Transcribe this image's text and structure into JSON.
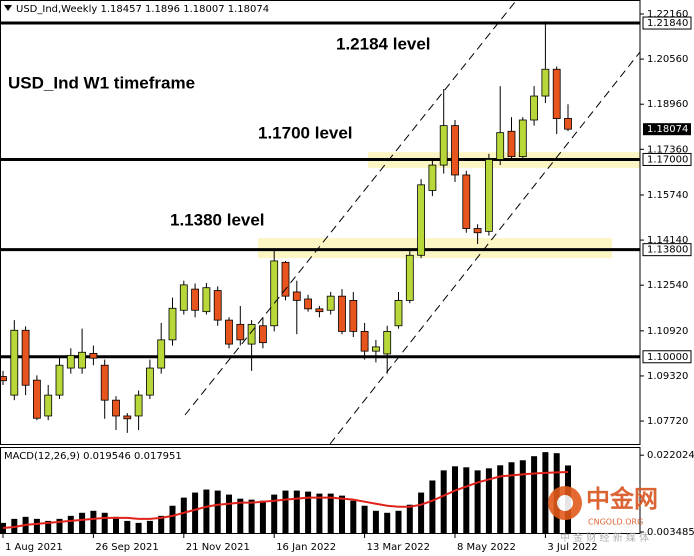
{
  "chart_data": {
    "type": "candlestick",
    "symbol": "USD_Ind,Weekly",
    "title": "USD_Ind W1 timeframe",
    "open": [
      1.093,
      1.0864,
      1.1094,
      1.0917,
      1.079,
      1.0864,
      1.096,
      1.096,
      1.1012,
      1.097,
      1.0846,
      1.079,
      1.079,
      1.0864,
      1.096,
      1.106,
      1.1165,
      1.124,
      1.116,
      1.1235,
      1.113,
      1.1115,
      1.1045,
      1.111,
      1.111,
      1.1335,
      1.123,
      1.1205,
      1.117,
      1.1165,
      1.1215,
      1.12,
      1.109,
      1.102,
      1.101,
      1.111,
      1.12,
      1.136,
      1.159,
      1.168,
      1.182,
      1.1645,
      1.1455,
      1.1445,
      1.17,
      1.18,
      1.171,
      1.184,
      1.1925,
      1.202,
      1.18457
    ],
    "high": [
      1.095,
      1.113,
      1.1108,
      1.0934,
      1.09,
      1.1,
      1.103,
      1.11,
      1.104,
      1.099,
      1.086,
      1.08,
      1.088,
      1.099,
      1.112,
      1.121,
      1.127,
      1.126,
      1.1262,
      1.125,
      1.114,
      1.118,
      1.113,
      1.114,
      1.138,
      1.134,
      1.127,
      1.122,
      1.118,
      1.123,
      1.124,
      1.123,
      1.112,
      1.106,
      1.111,
      1.123,
      1.1375,
      1.163,
      1.17,
      1.195,
      1.184,
      1.166,
      1.147,
      1.172,
      1.196,
      1.185,
      1.185,
      1.196,
      1.219,
      1.203,
      1.1896
    ],
    "low": [
      1.09,
      1.0846,
      1.0864,
      1.0775,
      1.0775,
      1.085,
      1.094,
      1.094,
      1.097,
      1.078,
      1.074,
      1.073,
      1.074,
      1.085,
      1.094,
      1.104,
      1.115,
      1.114,
      1.115,
      1.111,
      1.103,
      1.104,
      1.095,
      1.103,
      1.109,
      1.12,
      1.108,
      1.116,
      1.114,
      1.115,
      1.108,
      1.107,
      1.099,
      1.098,
      1.094,
      1.11,
      1.119,
      1.135,
      1.157,
      1.165,
      1.162,
      1.144,
      1.14,
      1.143,
      1.168,
      1.17,
      1.17,
      1.182,
      1.19,
      1.179,
      1.18007
    ],
    "close": [
      1.0915,
      1.1094,
      1.0899,
      1.0782,
      1.0864,
      1.097,
      1.1005,
      1.1016,
      1.0995,
      1.0846,
      1.079,
      1.078,
      1.0864,
      1.096,
      1.106,
      1.1172,
      1.1255,
      1.1165,
      1.1245,
      1.113,
      1.1045,
      1.106,
      1.1115,
      1.105,
      1.134,
      1.1215,
      1.12,
      1.117,
      1.116,
      1.1215,
      1.109,
      1.109,
      1.102,
      1.1035,
      1.109,
      1.12,
      1.136,
      1.161,
      1.168,
      1.182,
      1.1645,
      1.1455,
      1.144,
      1.17,
      1.1795,
      1.171,
      1.184,
      1.1925,
      1.202,
      1.1845,
      1.18074
    ],
    "up_color": "#b8d83a",
    "down_color": "#e8541e",
    "ylim": [
      1.0687,
      1.22657
    ],
    "yticks": [
      {
        "value": 1.2216,
        "label": "1.22160"
      },
      {
        "value": 1.2056,
        "label": "1.20560"
      },
      {
        "value": 1.1896,
        "label": "1.18960"
      },
      {
        "value": 1.1736,
        "label": "1.17360"
      },
      {
        "value": 1.1574,
        "label": "1.15740"
      },
      {
        "value": 1.1414,
        "label": "1.14140"
      },
      {
        "value": 1.1254,
        "label": "1.12540"
      },
      {
        "value": 1.1092,
        "label": "1.10920"
      },
      {
        "value": 1.0932,
        "label": "1.09320"
      },
      {
        "value": 1.0772,
        "label": "1.07720"
      }
    ],
    "xticks": [
      {
        "value": 0,
        "label": "1 Aug 2021"
      },
      {
        "value": 8,
        "label": "26 Sep 2021"
      },
      {
        "value": 16,
        "label": "21 Nov 2021"
      },
      {
        "value": 24,
        "label": "16 Jan 2022"
      },
      {
        "value": 32,
        "label": "13 Mar 2022"
      },
      {
        "value": 40,
        "label": "8 May 2022"
      },
      {
        "value": 48,
        "label": "3 Jul 2022"
      }
    ],
    "levels": [
      {
        "value": 1.2184,
        "label": "1.21840"
      },
      {
        "value": 1.17,
        "label": "1.17000"
      },
      {
        "value": 1.138,
        "label": "1.13800"
      },
      {
        "value": 1.1,
        "label": "1.10000"
      }
    ],
    "zones": [
      [
        1.167,
        1.1726
      ],
      [
        1.135,
        1.1421
      ]
    ],
    "zone_color": "#fbf6c4",
    "annotations": [
      "1.2184 level",
      "1.1700 level",
      "1.1380 level"
    ],
    "macd": {
      "label": "MACD(12,26,9)",
      "histogram": [
        0.00568,
        0.00665,
        0.00714,
        0.00665,
        0.00616,
        0.00665,
        0.00738,
        0.00812,
        0.0086,
        0.00812,
        0.00714,
        0.00616,
        0.00568,
        0.00616,
        0.00738,
        0.00982,
        0.01178,
        0.013,
        0.01373,
        0.01348,
        0.01251,
        0.01153,
        0.01129,
        0.01104,
        0.01251,
        0.01348,
        0.01348,
        0.01324,
        0.01275,
        0.01275,
        0.01226,
        0.01104,
        0.00982,
        0.0086,
        0.00812,
        0.0086,
        0.01007,
        0.013,
        0.01592,
        0.01836,
        0.01934,
        0.0191,
        0.01836,
        0.01885,
        0.01958,
        0.02032,
        0.0208,
        0.02178,
        0.02276,
        0.02251,
        0.019546
      ],
      "signal": [
        0.00446,
        0.0047,
        0.00519,
        0.00543,
        0.00568,
        0.00592,
        0.00616,
        0.00641,
        0.00665,
        0.0069,
        0.0069,
        0.0069,
        0.00665,
        0.00665,
        0.0069,
        0.00738,
        0.00812,
        0.00885,
        0.00958,
        0.01007,
        0.01031,
        0.01056,
        0.01056,
        0.0108,
        0.01104,
        0.01129,
        0.01153,
        0.01178,
        0.01178,
        0.01178,
        0.01153,
        0.01129,
        0.0108,
        0.01031,
        0.00982,
        0.00958,
        0.00958,
        0.01007,
        0.01104,
        0.01226,
        0.01348,
        0.01446,
        0.01544,
        0.01617,
        0.0169,
        0.01715,
        0.0174,
        0.0176,
        0.01775,
        0.01788,
        0.017951
      ],
      "histogram_color": "#000000",
      "signal_color": "#e0221b",
      "ylim": [
        0.003,
        0.024
      ],
      "yticks": [
        0.022024,
        0.003485
      ]
    }
  },
  "watermark": {
    "name": "中金网",
    "url": "CNGOLD.ORG",
    "tagline": "中 金 财 经 新 媒 体"
  }
}
